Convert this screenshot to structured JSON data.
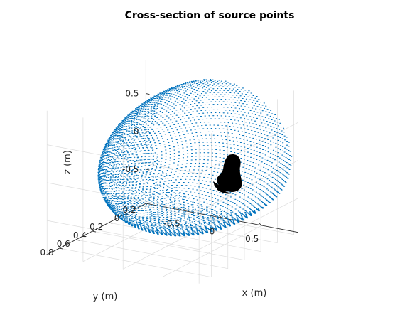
{
  "chart_data": {
    "type": "scatter",
    "title": "Cross-section of source points",
    "xlabel": "x (m)",
    "ylabel": "y (m)",
    "zlabel": "z (m)",
    "x_ticks": [
      "-0.5",
      "0",
      "0.5"
    ],
    "y_ticks": [
      "-0.2",
      "0",
      "0.2",
      "0.4",
      "0.6",
      "0.8"
    ],
    "z_ticks": [
      "-0.5",
      "0",
      "0.5"
    ],
    "xlim": [
      -0.95,
      0.95
    ],
    "ylim": [
      -0.25,
      0.95
    ],
    "zlim": [
      -0.95,
      0.95
    ],
    "grid": true,
    "point_color": "#0072BD",
    "head_color": "#000000",
    "series": [
      {
        "shape": "sphere-shell",
        "radius": 0.9,
        "y_range": [
          -0.25,
          0.9
        ],
        "note_points": "dense points distributed on a sphere shell cut by a plane near y = 0.9"
      }
    ]
  }
}
